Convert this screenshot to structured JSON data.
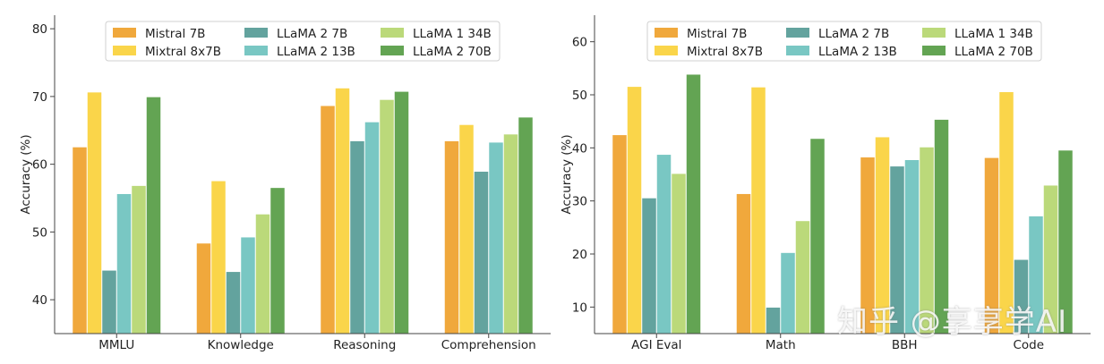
{
  "colors": {
    "Mistral 7B": "#F0A83C",
    "Mixtral 8x7B": "#FAD54A",
    "LLaMA 2 7B": "#63A39E",
    "LLaMA 2 13B": "#79C7C3",
    "LLaMA 1 34B": "#BBD97A",
    "LLaMA 2 70B": "#63A453"
  },
  "legend": {
    "placement": "top",
    "entries": [
      "Mistral 7B",
      "Mixtral 8x7B",
      "LLaMA 2 7B",
      "LLaMA 2 13B",
      "LLaMA 1 34B",
      "LLaMA 2 70B"
    ]
  },
  "watermark": "知乎 @享享学AI",
  "chart_data": [
    {
      "type": "bar",
      "ylabel": "Accuracy (%)",
      "ylim": [
        35,
        82
      ],
      "yticks": [
        40,
        50,
        60,
        70,
        80
      ],
      "categories": [
        "MMLU",
        "Knowledge",
        "Reasoning",
        "Comprehension"
      ],
      "series": [
        {
          "name": "Mistral 7B",
          "values": [
            62.5,
            48.3,
            68.6,
            63.4
          ]
        },
        {
          "name": "Mixtral 8x7B",
          "values": [
            70.6,
            57.5,
            71.2,
            65.8
          ]
        },
        {
          "name": "LLaMA 2 7B",
          "values": [
            44.3,
            44.1,
            63.4,
            58.9
          ]
        },
        {
          "name": "LLaMA 2 13B",
          "values": [
            55.6,
            49.2,
            66.2,
            63.2
          ]
        },
        {
          "name": "LLaMA 1 34B",
          "values": [
            56.8,
            52.6,
            69.5,
            64.4
          ]
        },
        {
          "name": "LLaMA 2 70B",
          "values": [
            69.9,
            56.5,
            70.7,
            66.9
          ]
        }
      ],
      "grid": false
    },
    {
      "type": "bar",
      "ylabel": "Accuracy (%)",
      "ylim": [
        5,
        65
      ],
      "yticks": [
        10,
        20,
        30,
        40,
        50,
        60
      ],
      "categories": [
        "AGI Eval",
        "Math",
        "BBH",
        "Code"
      ],
      "series": [
        {
          "name": "Mistral 7B",
          "values": [
            42.4,
            31.3,
            38.2,
            38.1
          ]
        },
        {
          "name": "Mixtral 8x7B",
          "values": [
            51.5,
            51.4,
            42.0,
            50.5
          ]
        },
        {
          "name": "LLaMA 2 7B",
          "values": [
            30.5,
            9.9,
            36.5,
            18.9
          ]
        },
        {
          "name": "LLaMA 2 13B",
          "values": [
            38.7,
            20.2,
            37.7,
            27.1
          ]
        },
        {
          "name": "LLaMA 1 34B",
          "values": [
            35.1,
            26.2,
            40.1,
            32.9
          ]
        },
        {
          "name": "LLaMA 2 70B",
          "values": [
            53.8,
            41.7,
            45.3,
            39.5
          ]
        }
      ],
      "grid": false
    }
  ]
}
